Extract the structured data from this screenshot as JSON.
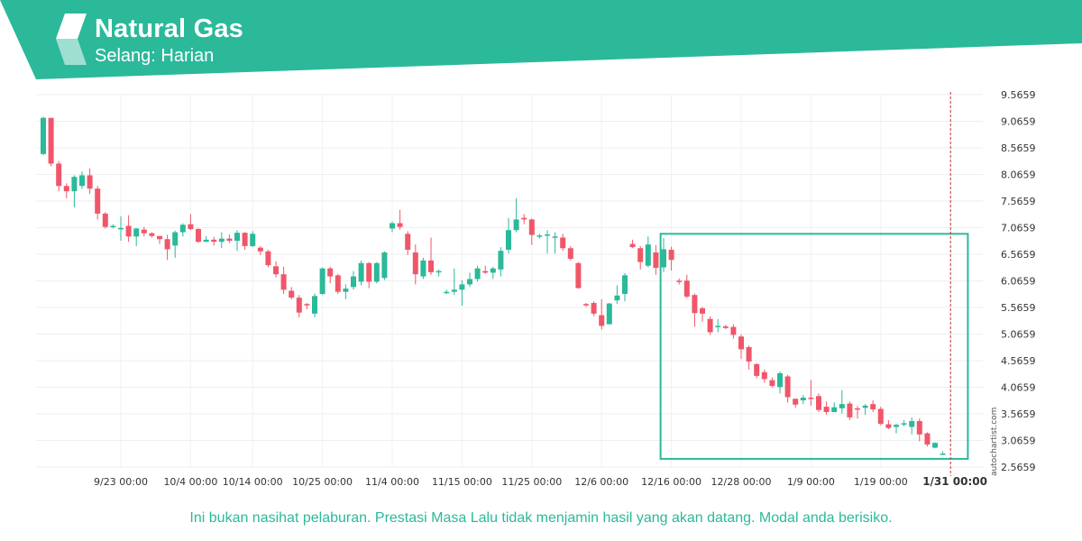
{
  "header": {
    "title": "Natural Gas",
    "subtitle": "Selang: Harian",
    "logo_icon": "autochartist-logo-icon",
    "accent_color": "#2bb99a"
  },
  "watermark": "autochartist.com",
  "disclaimer": "Ini bukan nasihat pelaburan. Prestasi Masa Lalu tidak menjamin hasil yang akan datang. Modal anda berisiko.",
  "chart_data": {
    "type": "candlestick",
    "y_ticks": [
      "9.5659",
      "9.0659",
      "8.5659",
      "8.0659",
      "7.5659",
      "7.0659",
      "6.5659",
      "6.0659",
      "5.5659",
      "5.0659",
      "4.5659",
      "4.0659",
      "3.5659",
      "3.0659",
      "2.5659"
    ],
    "ylim": [
      2.5659,
      9.5659
    ],
    "x_ticks": [
      {
        "label": "9/23 00:00",
        "index": 10
      },
      {
        "label": "10/4 00:00",
        "index": 19
      },
      {
        "label": "10/14 00:00",
        "index": 27
      },
      {
        "label": "10/25 00:00",
        "index": 36
      },
      {
        "label": "11/4 00:00",
        "index": 45
      },
      {
        "label": "11/15 00:00",
        "index": 54
      },
      {
        "label": "11/25 00:00",
        "index": 63
      },
      {
        "label": "12/6 00:00",
        "index": 72
      },
      {
        "label": "12/16 00:00",
        "index": 81
      },
      {
        "label": "12/28 00:00",
        "index": 90
      },
      {
        "label": "1/9 00:00",
        "index": 99
      },
      {
        "label": "1/19 00:00",
        "index": 108
      },
      {
        "label": "1/31 00:00",
        "index": 117,
        "bold": true
      }
    ],
    "up_color": "#2bb99a",
    "down_color": "#f0566a",
    "candles": [
      [
        8.45,
        9.13,
        9.15,
        8.43
      ],
      [
        9.13,
        8.27,
        9.13,
        8.22
      ],
      [
        8.27,
        7.85,
        8.32,
        7.75
      ],
      [
        7.85,
        7.75,
        7.9,
        7.62
      ],
      [
        7.75,
        8.02,
        8.05,
        7.45
      ],
      [
        7.85,
        8.05,
        8.12,
        7.79
      ],
      [
        8.05,
        7.8,
        8.18,
        7.7
      ],
      [
        7.8,
        7.33,
        7.85,
        7.22
      ],
      [
        7.33,
        7.08,
        7.36,
        7.05
      ],
      [
        7.08,
        7.1,
        7.13,
        7.05
      ],
      [
        7.06,
        7.06,
        7.28,
        6.82
      ],
      [
        7.1,
        6.9,
        7.3,
        6.8
      ],
      [
        6.9,
        7.05,
        7.06,
        6.72
      ],
      [
        7.03,
        6.96,
        7.08,
        6.9
      ],
      [
        6.96,
        6.91,
        6.98,
        6.88
      ],
      [
        6.91,
        6.85,
        6.9,
        6.76
      ],
      [
        6.85,
        6.66,
        6.93,
        6.46
      ],
      [
        6.73,
        6.98,
        7.01,
        6.5
      ],
      [
        6.98,
        7.12,
        7.15,
        6.9
      ],
      [
        7.13,
        7.04,
        7.32,
        7.02
      ],
      [
        7.04,
        6.8,
        7.06,
        6.78
      ],
      [
        6.8,
        6.84,
        6.91,
        6.8
      ],
      [
        6.84,
        6.8,
        6.89,
        6.73
      ],
      [
        6.8,
        6.86,
        6.98,
        6.68
      ],
      [
        6.86,
        6.82,
        6.94,
        6.78
      ],
      [
        6.82,
        6.97,
        7.02,
        6.63
      ],
      [
        6.97,
        6.72,
        6.98,
        6.65
      ],
      [
        6.72,
        6.95,
        7.0,
        6.7
      ],
      [
        6.69,
        6.62,
        6.72,
        6.55
      ],
      [
        6.62,
        6.36,
        6.65,
        6.32
      ],
      [
        6.34,
        6.19,
        6.43,
        6.13
      ],
      [
        6.19,
        5.9,
        6.33,
        5.82
      ],
      [
        5.88,
        5.75,
        5.95,
        5.72
      ],
      [
        5.75,
        5.47,
        5.8,
        5.38
      ],
      [
        5.63,
        5.62,
        5.65,
        5.53
      ],
      [
        5.45,
        5.78,
        5.83,
        5.38
      ],
      [
        5.82,
        6.3,
        6.32,
        5.8
      ],
      [
        6.3,
        6.15,
        6.33,
        6.02
      ],
      [
        6.17,
        5.86,
        6.2,
        5.82
      ],
      [
        5.86,
        5.92,
        6.0,
        5.72
      ],
      [
        5.95,
        6.15,
        6.25,
        5.9
      ],
      [
        6.05,
        6.4,
        6.45,
        5.98
      ],
      [
        6.4,
        6.05,
        6.42,
        5.93
      ],
      [
        6.05,
        6.4,
        6.42,
        6.02
      ],
      [
        6.12,
        6.6,
        6.62,
        6.08
      ],
      [
        7.05,
        7.15,
        7.18,
        6.98
      ],
      [
        7.15,
        7.08,
        7.4,
        7.03
      ],
      [
        6.95,
        6.65,
        7.0,
        6.55
      ],
      [
        6.6,
        6.19,
        6.75,
        6.0
      ],
      [
        6.15,
        6.45,
        6.5,
        6.1
      ],
      [
        6.45,
        6.23,
        6.88,
        6.18
      ],
      [
        6.25,
        6.25,
        6.28,
        6.15
      ],
      [
        5.86,
        5.86,
        5.9,
        5.82
      ],
      [
        5.86,
        5.9,
        6.3,
        5.8
      ],
      [
        5.9,
        6.0,
        6.08,
        5.6
      ],
      [
        6.0,
        6.1,
        6.22,
        5.95
      ],
      [
        6.1,
        6.3,
        6.35,
        6.05
      ],
      [
        6.25,
        6.22,
        6.35,
        6.2
      ],
      [
        6.22,
        6.3,
        6.33,
        6.1
      ],
      [
        6.28,
        6.63,
        6.7,
        6.15
      ],
      [
        6.65,
        7.02,
        7.25,
        6.58
      ],
      [
        7.02,
        7.22,
        7.62,
        6.98
      ],
      [
        7.25,
        7.22,
        7.32,
        7.13
      ],
      [
        7.22,
        6.93,
        7.24,
        6.74
      ],
      [
        6.92,
        6.92,
        6.95,
        6.86
      ],
      [
        6.92,
        6.94,
        7.02,
        6.58
      ],
      [
        6.9,
        6.9,
        6.98,
        6.58
      ],
      [
        6.88,
        6.68,
        6.95,
        6.63
      ],
      [
        6.68,
        6.48,
        6.72,
        6.45
      ],
      [
        6.4,
        5.93,
        6.42,
        5.92
      ],
      [
        5.63,
        5.61,
        5.65,
        5.58
      ],
      [
        5.65,
        5.45,
        5.68,
        5.4
      ],
      [
        5.42,
        5.22,
        5.72,
        5.15
      ],
      [
        5.25,
        5.64,
        5.65,
        5.25
      ],
      [
        5.7,
        5.79,
        5.98,
        5.63
      ],
      [
        5.82,
        6.17,
        6.21,
        5.68
      ],
      [
        6.76,
        6.7,
        6.84,
        6.68
      ],
      [
        6.68,
        6.42,
        6.72,
        6.28
      ],
      [
        6.35,
        6.75,
        6.9,
        6.32
      ],
      [
        6.6,
        6.31,
        6.74,
        6.18
      ],
      [
        6.32,
        6.66,
        6.87,
        6.23
      ],
      [
        6.65,
        6.46,
        6.71,
        6.26
      ],
      [
        6.07,
        6.06,
        6.11,
        6.0
      ],
      [
        6.07,
        5.77,
        6.18,
        5.74
      ],
      [
        5.8,
        5.46,
        5.83,
        5.2
      ],
      [
        5.55,
        5.45,
        5.58,
        5.3
      ],
      [
        5.35,
        5.1,
        5.4,
        5.05
      ],
      [
        5.2,
        5.22,
        5.35,
        5.1
      ],
      [
        5.21,
        5.18,
        5.24,
        5.16
      ],
      [
        5.2,
        5.05,
        5.25,
        4.98
      ],
      [
        5.02,
        4.78,
        5.06,
        4.6
      ],
      [
        4.82,
        4.55,
        4.85,
        4.4
      ],
      [
        4.5,
        4.28,
        4.52,
        4.24
      ],
      [
        4.35,
        4.22,
        4.4,
        4.15
      ],
      [
        4.2,
        4.09,
        4.25,
        4.06
      ],
      [
        4.07,
        4.33,
        4.36,
        3.95
      ],
      [
        4.27,
        3.88,
        4.3,
        3.78
      ],
      [
        3.85,
        3.74,
        3.85,
        3.68
      ],
      [
        3.82,
        3.87,
        3.92,
        3.75
      ],
      [
        3.87,
        3.86,
        4.2,
        3.72
      ],
      [
        3.9,
        3.64,
        3.95,
        3.6
      ],
      [
        3.7,
        3.6,
        3.8,
        3.55
      ],
      [
        3.6,
        3.69,
        3.78,
        3.62
      ],
      [
        3.67,
        3.75,
        4.01,
        3.57
      ],
      [
        3.76,
        3.5,
        3.8,
        3.45
      ],
      [
        3.67,
        3.66,
        3.71,
        3.48
      ],
      [
        3.68,
        3.72,
        3.75,
        3.55
      ],
      [
        3.75,
        3.65,
        3.82,
        3.6
      ],
      [
        3.66,
        3.38,
        3.7,
        3.35
      ],
      [
        3.37,
        3.3,
        3.45,
        3.28
      ],
      [
        3.32,
        3.36,
        3.38,
        3.2
      ],
      [
        3.38,
        3.39,
        3.45,
        3.33
      ],
      [
        3.32,
        3.43,
        3.5,
        3.18
      ],
      [
        3.43,
        3.18,
        3.48,
        3.05
      ],
      [
        3.2,
        2.99,
        3.22,
        2.95
      ],
      [
        2.93,
        3.02,
        3.03,
        2.92
      ],
      [
        2.82,
        2.82,
        2.86,
        2.8
      ]
    ],
    "highlight_box": {
      "start_index": 81,
      "end_index": 119,
      "high": 6.95,
      "low": 2.72
    }
  }
}
